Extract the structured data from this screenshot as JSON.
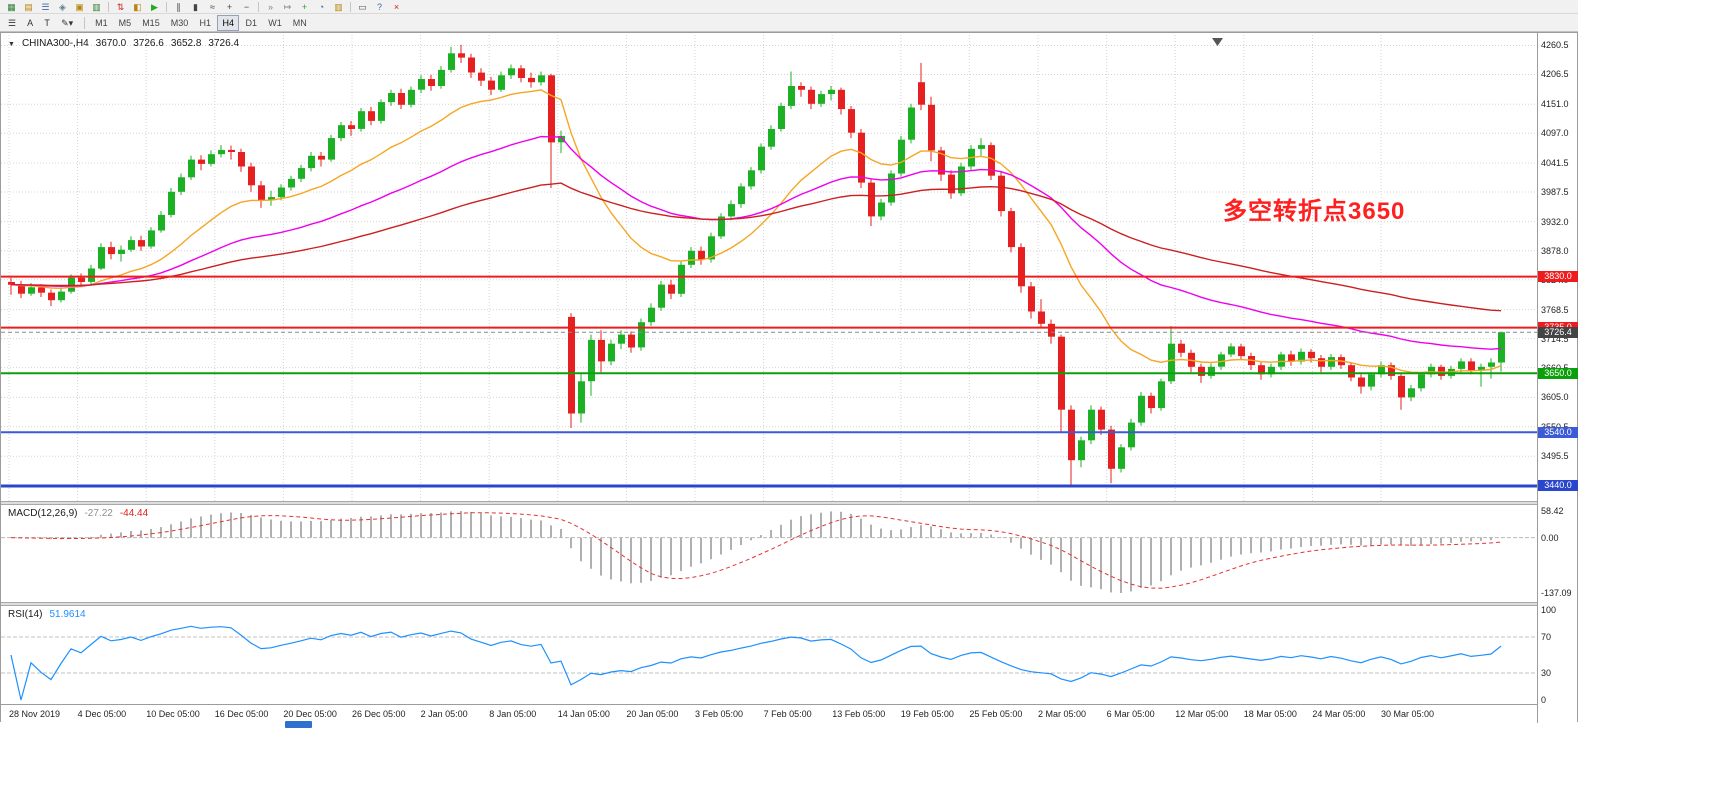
{
  "colors": {
    "candle_up": "#1cb024",
    "candle_down": "#e62020",
    "grid": "#d4d4d4",
    "macd_hist": "#b0b0b0",
    "macd_signal": "#e33333",
    "rsi": "#1e90ff",
    "annotation": "#ff1f1f",
    "bid_line": "#8a8a8a"
  },
  "toolbar": {
    "icons": [
      {
        "name": "new-chart-icon",
        "glyph": "▦",
        "color": "#2e7d32"
      },
      {
        "name": "profiles-icon",
        "glyph": "▤",
        "color": "#b8860b"
      },
      {
        "name": "market-watch-icon",
        "glyph": "☰",
        "color": "#3a6ea5"
      },
      {
        "name": "data-window-icon",
        "glyph": "◈",
        "color": "#607d8b"
      },
      {
        "name": "navigator-icon",
        "glyph": "▣",
        "color": "#b8860b"
      },
      {
        "name": "terminal-icon",
        "glyph": "▥",
        "color": "#2e7d32"
      },
      {
        "sep": true
      },
      {
        "name": "new-order-icon",
        "glyph": "⇅",
        "color": "#cc2222"
      },
      {
        "name": "metaeditor-icon",
        "glyph": "◧",
        "color": "#b8860b"
      },
      {
        "name": "autotrading-icon",
        "glyph": "▶",
        "color": "#22aa22"
      },
      {
        "sep": true
      },
      {
        "name": "bar-chart-icon",
        "glyph": "∥",
        "color": "#444444"
      },
      {
        "name": "candlestick-chart-icon",
        "glyph": "▮",
        "color": "#444444"
      },
      {
        "name": "line-chart-icon",
        "glyph": "≈",
        "color": "#444444"
      },
      {
        "name": "zoom-in-icon",
        "glyph": "+",
        "color": "#444444"
      },
      {
        "name": "zoom-out-icon",
        "glyph": "−",
        "color": "#444444"
      },
      {
        "sep": true
      },
      {
        "name": "auto-scroll-icon",
        "glyph": "»",
        "color": "#888888"
      },
      {
        "name": "chart-shift-icon",
        "glyph": "↦",
        "color": "#888888"
      },
      {
        "name": "indicators-icon",
        "glyph": "+",
        "color": "#22aa22"
      },
      {
        "name": "periods-icon",
        "glyph": "◔",
        "color": "#3a6ea5"
      },
      {
        "name": "templates-icon",
        "glyph": "▥",
        "color": "#b8860b"
      },
      {
        "sep": true
      },
      {
        "name": "print-icon",
        "glyph": "▭",
        "color": "#555555"
      },
      {
        "name": "help-icon",
        "glyph": "?",
        "color": "#3a6ea5"
      },
      {
        "name": "close-icon",
        "glyph": "×",
        "color": "#cc2222"
      }
    ]
  },
  "tools": {
    "list_icon": "☰",
    "text_label": "A",
    "type_tool": "T",
    "draw_dropdown": "✎▾"
  },
  "timeframes": {
    "items": [
      "M1",
      "M5",
      "M15",
      "M30",
      "H1",
      "H4",
      "D1",
      "W1",
      "MN"
    ],
    "active": "H4"
  },
  "chart": {
    "collapse_icon": "▼",
    "symbol": "CHINA300-,H4",
    "open": "3670.0",
    "high": "3726.6",
    "low": "3652.8",
    "close": "3726.4"
  },
  "annotation": {
    "text": "多空转折点3650"
  },
  "price_scale": [
    4260.5,
    4206.5,
    4151.0,
    4097.0,
    4041.5,
    3987.5,
    3932.0,
    3878.0,
    3824.0,
    3768.5,
    3714.5,
    3660.5,
    3605.0,
    3550.5,
    3495.5
  ],
  "levels": [
    {
      "price": 3830.0,
      "label": "3830.0",
      "color": "#ee1c1c",
      "badge_color": "#ee1c1c",
      "width": 2,
      "style": "solid"
    },
    {
      "price": 3735.0,
      "label": "3735.0",
      "color": "#ee1c1c",
      "badge_color": "#ee1c1c",
      "width": 2,
      "style": "solid"
    },
    {
      "price": 3726.4,
      "label": "3726.4",
      "color": "#8a8a8a",
      "badge_color": "#444444",
      "width": 1,
      "style": "dashed"
    },
    {
      "price": 3650.0,
      "label": "3650.0",
      "color": "#0ba00b",
      "badge_color": "#0ba00b",
      "width": 2,
      "style": "solid"
    },
    {
      "price": 3540.0,
      "label": "3540.0",
      "color": "#3c5bd6",
      "badge_color": "#3c5bd6",
      "width": 2,
      "style": "solid"
    },
    {
      "price": 3440.0,
      "label": "3440.0",
      "color": "#2946cc",
      "badge_color": "#2946cc",
      "width": 3,
      "style": "solid"
    }
  ],
  "time_axis": [
    "28 Nov 2019",
    "4 Dec 05:00",
    "10 Dec 05:00",
    "16 Dec 05:00",
    "20 Dec 05:00",
    "26 Dec 05:00",
    "2 Jan 05:00",
    "8 Jan 05:00",
    "14 Jan 05:00",
    "20 Jan 05:00",
    "3 Feb 05:00",
    "7 Feb 05:00",
    "13 Feb 05:00",
    "19 Feb 05:00",
    "25 Feb 05:00",
    "2 Mar 05:00",
    "6 Mar 05:00",
    "12 Mar 05:00",
    "18 Mar 05:00",
    "24 Mar 05:00",
    "30 Mar 05:00"
  ],
  "indicators": {
    "macd": {
      "label": "MACD(12,26,9)",
      "value": "-27.22",
      "signal": "-44.44",
      "scale": [
        "58.42",
        "0.00",
        "-137.09"
      ],
      "scale_values": [
        58.42,
        0,
        -137.09
      ]
    },
    "rsi": {
      "label": "RSI(14)",
      "value": "51.9614",
      "scale": [
        "100",
        "70",
        "30",
        "0"
      ],
      "scale_values": [
        100,
        70,
        30,
        0
      ],
      "levels": [
        70,
        30
      ]
    }
  },
  "chart_data": {
    "type": "candlestick",
    "symbol": "CHINA300-",
    "timeframe": "H4",
    "macd": {
      "fast": 12,
      "slow": 26,
      "signal": 9
    },
    "rsi": {
      "period": 14
    },
    "moving_averages": [
      {
        "name": "ma-fast",
        "period": 18,
        "color": "#f5a623"
      },
      {
        "name": "ma-mid",
        "period": 45,
        "color": "#ee00ee"
      },
      {
        "name": "ma-slow",
        "period": 90,
        "color": "#cc2020"
      }
    ],
    "candles": [
      [
        3820,
        3828,
        3796,
        3815
      ],
      [
        3815,
        3822,
        3790,
        3798
      ],
      [
        3798,
        3818,
        3794,
        3810
      ],
      [
        3810,
        3816,
        3792,
        3800
      ],
      [
        3800,
        3806,
        3775,
        3786
      ],
      [
        3786,
        3810,
        3782,
        3802
      ],
      [
        3802,
        3834,
        3798,
        3828
      ],
      [
        3828,
        3836,
        3812,
        3820
      ],
      [
        3820,
        3852,
        3816,
        3845
      ],
      [
        3845,
        3892,
        3842,
        3885
      ],
      [
        3885,
        3895,
        3862,
        3872
      ],
      [
        3872,
        3888,
        3858,
        3880
      ],
      [
        3880,
        3905,
        3876,
        3898
      ],
      [
        3898,
        3906,
        3878,
        3886
      ],
      [
        3886,
        3922,
        3882,
        3916
      ],
      [
        3916,
        3952,
        3912,
        3945
      ],
      [
        3945,
        3995,
        3940,
        3988
      ],
      [
        3988,
        4022,
        3982,
        4015
      ],
      [
        4015,
        4055,
        4010,
        4048
      ],
      [
        4048,
        4056,
        4028,
        4040
      ],
      [
        4040,
        4065,
        4035,
        4058
      ],
      [
        4058,
        4075,
        4052,
        4066
      ],
      [
        4066,
        4074,
        4048,
        4062
      ],
      [
        4062,
        4068,
        4025,
        4035
      ],
      [
        4035,
        4042,
        3988,
        4000
      ],
      [
        4000,
        4008,
        3958,
        3972
      ],
      [
        3972,
        3990,
        3962,
        3978
      ],
      [
        3978,
        4002,
        3972,
        3996
      ],
      [
        3996,
        4018,
        3990,
        4012
      ],
      [
        4012,
        4038,
        4006,
        4032
      ],
      [
        4032,
        4062,
        4026,
        4055
      ],
      [
        4055,
        4062,
        4035,
        4048
      ],
      [
        4048,
        4094,
        4044,
        4088
      ],
      [
        4088,
        4118,
        4082,
        4112
      ],
      [
        4112,
        4120,
        4092,
        4105
      ],
      [
        4105,
        4144,
        4100,
        4138
      ],
      [
        4138,
        4146,
        4112,
        4120
      ],
      [
        4120,
        4160,
        4115,
        4155
      ],
      [
        4155,
        4178,
        4148,
        4172
      ],
      [
        4172,
        4180,
        4142,
        4150
      ],
      [
        4150,
        4184,
        4145,
        4178
      ],
      [
        4178,
        4205,
        4172,
        4198
      ],
      [
        4198,
        4206,
        4176,
        4185
      ],
      [
        4185,
        4222,
        4180,
        4215
      ],
      [
        4215,
        4258,
        4210,
        4246
      ],
      [
        4246,
        4262,
        4228,
        4238
      ],
      [
        4238,
        4245,
        4200,
        4210
      ],
      [
        4210,
        4218,
        4185,
        4195
      ],
      [
        4195,
        4202,
        4168,
        4178
      ],
      [
        4178,
        4212,
        4174,
        4205
      ],
      [
        4205,
        4225,
        4198,
        4218
      ],
      [
        4218,
        4224,
        4192,
        4200
      ],
      [
        4200,
        4210,
        4182,
        4192
      ],
      [
        4192,
        4212,
        4186,
        4205
      ],
      [
        4205,
        4208,
        3995,
        4080
      ],
      [
        4080,
        4102,
        4060,
        4092
      ],
      [
        3755,
        3762,
        3548,
        3575
      ],
      [
        3575,
        3648,
        3558,
        3635
      ],
      [
        3635,
        3722,
        3608,
        3712
      ],
      [
        3712,
        3730,
        3652,
        3672
      ],
      [
        3672,
        3712,
        3665,
        3705
      ],
      [
        3705,
        3730,
        3695,
        3722
      ],
      [
        3722,
        3728,
        3688,
        3698
      ],
      [
        3698,
        3752,
        3692,
        3745
      ],
      [
        3745,
        3780,
        3738,
        3772
      ],
      [
        3772,
        3822,
        3766,
        3815
      ],
      [
        3815,
        3824,
        3788,
        3798
      ],
      [
        3798,
        3858,
        3792,
        3852
      ],
      [
        3852,
        3885,
        3846,
        3878
      ],
      [
        3878,
        3886,
        3852,
        3862
      ],
      [
        3862,
        3912,
        3856,
        3905
      ],
      [
        3905,
        3948,
        3900,
        3942
      ],
      [
        3942,
        3972,
        3935,
        3965
      ],
      [
        3965,
        4004,
        3958,
        3998
      ],
      [
        3998,
        4034,
        3992,
        4028
      ],
      [
        4028,
        4078,
        4022,
        4072
      ],
      [
        4072,
        4112,
        4066,
        4105
      ],
      [
        4105,
        4154,
        4100,
        4148
      ],
      [
        4148,
        4212,
        4142,
        4185
      ],
      [
        4185,
        4192,
        4165,
        4178
      ],
      [
        4178,
        4184,
        4142,
        4152
      ],
      [
        4152,
        4176,
        4146,
        4170
      ],
      [
        4170,
        4185,
        4158,
        4178
      ],
      [
        4178,
        4182,
        4132,
        4142
      ],
      [
        4142,
        4148,
        4088,
        4098
      ],
      [
        4098,
        4105,
        3995,
        4005
      ],
      [
        4005,
        4012,
        3924,
        3942
      ],
      [
        3942,
        3975,
        3935,
        3968
      ],
      [
        3968,
        4028,
        3962,
        4022
      ],
      [
        4022,
        4092,
        4016,
        4085
      ],
      [
        4085,
        4152,
        4078,
        4145
      ],
      [
        4192,
        4228,
        4140,
        4150
      ],
      [
        4150,
        4165,
        4045,
        4065
      ],
      [
        4065,
        4072,
        4008,
        4020
      ],
      [
        4020,
        4028,
        3975,
        3985
      ],
      [
        3985,
        4042,
        3980,
        4035
      ],
      [
        4035,
        4075,
        4028,
        4068
      ],
      [
        4068,
        4088,
        4055,
        4075
      ],
      [
        4075,
        4080,
        4010,
        4018
      ],
      [
        4018,
        4025,
        3942,
        3952
      ],
      [
        3952,
        3958,
        3875,
        3885
      ],
      [
        3885,
        3892,
        3800,
        3812
      ],
      [
        3812,
        3820,
        3752,
        3765
      ],
      [
        3765,
        3788,
        3735,
        3742
      ],
      [
        3742,
        3750,
        3705,
        3718
      ],
      [
        3718,
        3722,
        3540,
        3582
      ],
      [
        3582,
        3590,
        3438,
        3488
      ],
      [
        3488,
        3532,
        3475,
        3525
      ],
      [
        3525,
        3590,
        3518,
        3582
      ],
      [
        3582,
        3588,
        3535,
        3545
      ],
      [
        3545,
        3552,
        3445,
        3472
      ],
      [
        3472,
        3518,
        3465,
        3512
      ],
      [
        3512,
        3565,
        3506,
        3558
      ],
      [
        3558,
        3615,
        3552,
        3608
      ],
      [
        3608,
        3614,
        3575,
        3585
      ],
      [
        3585,
        3640,
        3580,
        3635
      ],
      [
        3635,
        3738,
        3630,
        3705
      ],
      [
        3705,
        3712,
        3680,
        3688
      ],
      [
        3688,
        3694,
        3652,
        3662
      ],
      [
        3662,
        3668,
        3632,
        3645
      ],
      [
        3645,
        3668,
        3640,
        3662
      ],
      [
        3662,
        3690,
        3656,
        3685
      ],
      [
        3685,
        3706,
        3680,
        3700
      ],
      [
        3700,
        3705,
        3675,
        3682
      ],
      [
        3682,
        3688,
        3656,
        3665
      ],
      [
        3665,
        3670,
        3638,
        3648
      ],
      [
        3648,
        3668,
        3642,
        3662
      ],
      [
        3662,
        3690,
        3656,
        3685
      ],
      [
        3685,
        3692,
        3664,
        3672
      ],
      [
        3672,
        3696,
        3666,
        3690
      ],
      [
        3690,
        3695,
        3670,
        3678
      ],
      [
        3678,
        3684,
        3652,
        3662
      ],
      [
        3662,
        3686,
        3656,
        3680
      ],
      [
        3680,
        3685,
        3658,
        3665
      ],
      [
        3665,
        3670,
        3635,
        3642
      ],
      [
        3642,
        3648,
        3612,
        3625
      ],
      [
        3625,
        3652,
        3618,
        3648
      ],
      [
        3648,
        3672,
        3642,
        3665
      ],
      [
        3665,
        3670,
        3638,
        3645
      ],
      [
        3645,
        3650,
        3582,
        3605
      ],
      [
        3605,
        3628,
        3598,
        3622
      ],
      [
        3622,
        3652,
        3616,
        3648
      ],
      [
        3648,
        3668,
        3642,
        3662
      ],
      [
        3662,
        3666,
        3638,
        3645
      ],
      [
        3645,
        3664,
        3640,
        3658
      ],
      [
        3658,
        3678,
        3652,
        3672
      ],
      [
        3672,
        3678,
        3648,
        3655
      ],
      [
        3655,
        3668,
        3625,
        3662
      ],
      [
        3662,
        3678,
        3640,
        3670
      ],
      [
        3670,
        3726.6,
        3652.8,
        3726.4
      ]
    ]
  }
}
